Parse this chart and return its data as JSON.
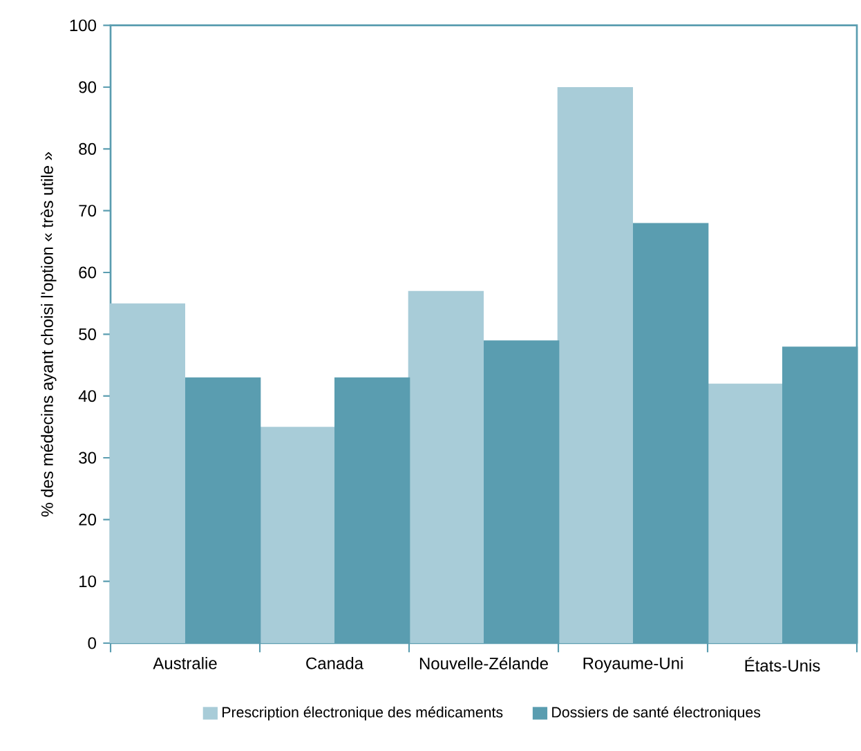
{
  "chart_data": {
    "type": "bar",
    "ylabel": "% des médecins ayant choisi l'option « très utile »",
    "categories": [
      "Australie",
      "Canada",
      "Nouvelle-Zélande",
      "Royaume-Uni",
      "États-Unis"
    ],
    "series": [
      {
        "name": "Prescription électronique des médicaments",
        "color": "#a8ccd8",
        "values": [
          55,
          35,
          57,
          90,
          42
        ]
      },
      {
        "name": "Dossiers de santé électroniques",
        "color": "#5a9db0",
        "values": [
          43,
          43,
          49,
          68,
          48
        ]
      }
    ],
    "ylim": [
      0,
      100
    ],
    "yticks": [
      0,
      10,
      20,
      30,
      40,
      50,
      60,
      70,
      80,
      90,
      100
    ],
    "grid": false,
    "legend": "bottom"
  }
}
